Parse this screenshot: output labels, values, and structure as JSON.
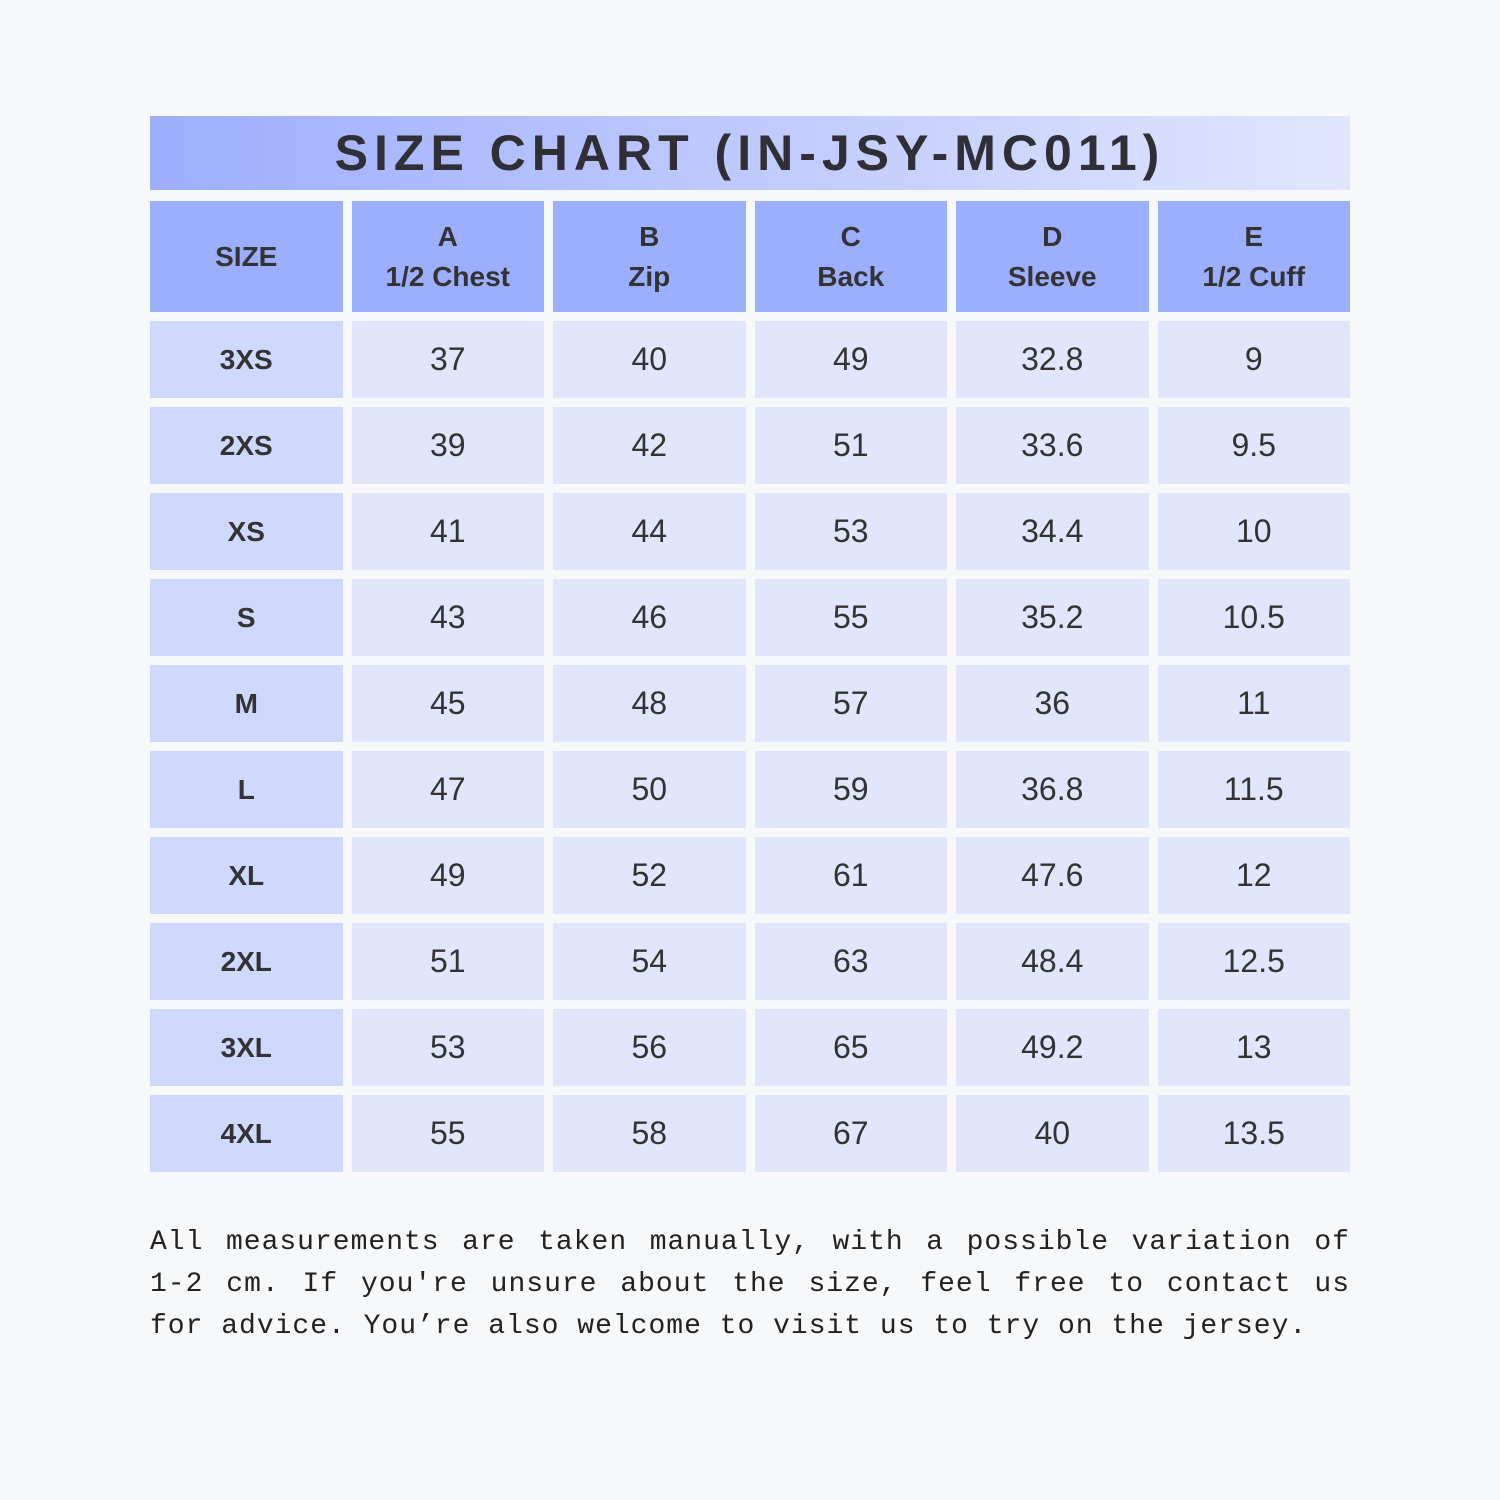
{
  "title": "SIZE CHART (IN-JSY-MC011)",
  "table": {
    "header": [
      [
        "SIZE"
      ],
      [
        "A",
        "1/2 Chest"
      ],
      [
        "B",
        "Zip"
      ],
      [
        "C",
        "Back"
      ],
      [
        "D",
        "Sleeve"
      ],
      [
        "E",
        "1/2 Cuff"
      ]
    ],
    "rows": [
      [
        "3XS",
        "37",
        "40",
        "49",
        "32.8",
        "9"
      ],
      [
        "2XS",
        "39",
        "42",
        "51",
        "33.6",
        "9.5"
      ],
      [
        "XS",
        "41",
        "44",
        "53",
        "34.4",
        "10"
      ],
      [
        "S",
        "43",
        "46",
        "55",
        "35.2",
        "10.5"
      ],
      [
        "M",
        "45",
        "48",
        "57",
        "36",
        "11"
      ],
      [
        "L",
        "47",
        "50",
        "59",
        "36.8",
        "11.5"
      ],
      [
        "XL",
        "49",
        "52",
        "61",
        "47.6",
        "12"
      ],
      [
        "2XL",
        "51",
        "54",
        "63",
        "48.4",
        "12.5"
      ],
      [
        "3XL",
        "53",
        "56",
        "65",
        "49.2",
        "13"
      ],
      [
        "4XL",
        "55",
        "58",
        "67",
        "40",
        "13.5"
      ]
    ]
  },
  "note": "All measurements are taken manually, with a possible variation of 1-2 cm. If you're unsure about the size, feel free to contact us for advice. You’re also welcome to visit us to try on the jersey."
}
